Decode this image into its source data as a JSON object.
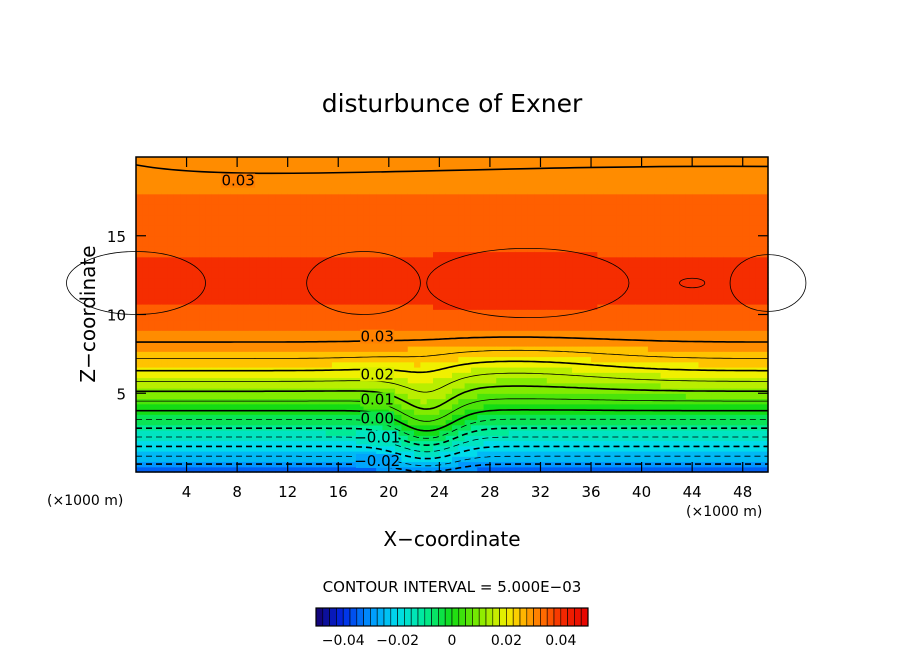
{
  "chart_data": {
    "type": "heatmap",
    "title": "disturbunce of Exner",
    "xlabel": "X−coordinate",
    "ylabel": "Z−coordinate",
    "x_unit": "(×1000 m)",
    "y_unit": "(×1000 m)",
    "xlim": [
      0,
      50
    ],
    "ylim": [
      0,
      20
    ],
    "x_ticks": [
      4,
      8,
      12,
      16,
      20,
      24,
      28,
      32,
      36,
      40,
      44,
      48
    ],
    "y_ticks": [
      5,
      10,
      15
    ],
    "contour_interval_text": "CONTOUR INTERVAL = 5.000E−03",
    "contour_labels": [
      {
        "text": "0.03",
        "x": 6.5,
        "z": 18.5
      },
      {
        "text": "0.03",
        "x": 17.5,
        "z": 8.6
      },
      {
        "text": "0.02",
        "x": 17.5,
        "z": 6.2
      },
      {
        "text": "0.01",
        "x": 17.5,
        "z": 4.6
      },
      {
        "text": "0.00",
        "x": 17.5,
        "z": 3.4
      },
      {
        "text": "−0.01",
        "x": 17.5,
        "z": 2.2
      },
      {
        "text": "−0.02",
        "x": 17.5,
        "z": 0.7
      }
    ],
    "profile_z": [
      0,
      1,
      2,
      3,
      4,
      5,
      6,
      7,
      8,
      9,
      10,
      11,
      12,
      13,
      14,
      15,
      16,
      17,
      18,
      19,
      20
    ],
    "profile_value": [
      -0.035,
      -0.025,
      -0.017,
      -0.008,
      0.001,
      0.009,
      0.017,
      0.024,
      0.029,
      0.033,
      0.036,
      0.038,
      0.039,
      0.038,
      0.037,
      0.035,
      0.034,
      0.033,
      0.032,
      0.031,
      0.03
    ],
    "bump_center_x": 23,
    "colorbar": {
      "range": [
        -0.05,
        0.05
      ],
      "ticks": [
        {
          "value": -0.04,
          "label": "−0.04"
        },
        {
          "value": -0.02,
          "label": "−0.02"
        },
        {
          "value": 0,
          "label": "0"
        },
        {
          "value": 0.02,
          "label": "0.02"
        },
        {
          "value": 0.04,
          "label": "0.04"
        }
      ]
    }
  }
}
